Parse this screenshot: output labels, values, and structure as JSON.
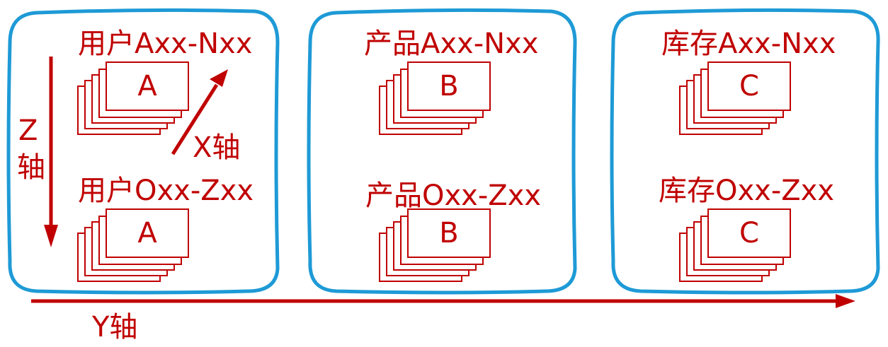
{
  "colors": {
    "accent": "#c00000",
    "box_border": "#1e9ad6",
    "background": "#ffffff"
  },
  "groups": [
    {
      "top_label": "用户Axx-Nxx",
      "top_letter": "A",
      "bottom_label": "用户Oxx-Zxx",
      "bottom_letter": "A"
    },
    {
      "top_label": "产品Axx-Nxx",
      "top_letter": "B",
      "bottom_label": "产品Oxx-Zxx",
      "bottom_letter": "B"
    },
    {
      "top_label": "库存Axx-Nxx",
      "top_letter": "C",
      "bottom_label": "库存Oxx-Zxx",
      "bottom_letter": "C"
    }
  ],
  "axes": {
    "z_label_line1": "Z",
    "z_label_line2": "轴",
    "x_label": "X轴",
    "y_label": "Y轴"
  }
}
